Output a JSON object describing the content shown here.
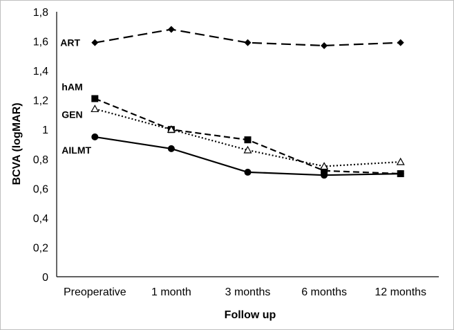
{
  "chart_data": {
    "type": "line",
    "title": "",
    "xlabel": "Follow up",
    "ylabel": "BCVA (logMAR)",
    "ylim": [
      0,
      1.8
    ],
    "yticks": [
      "0",
      "0,2",
      "0,4",
      "0,6",
      "0,8",
      "1",
      "1,2",
      "1,4",
      "1,6",
      "1,8"
    ],
    "categories": [
      "Preoperative",
      "1 month",
      "3 months",
      "6 months",
      "12 months"
    ],
    "grid": false,
    "legend": "inline labels at left",
    "series": [
      {
        "name": "ART",
        "marker": "diamond",
        "dash": "long-dash",
        "values": [
          1.59,
          1.68,
          1.59,
          1.57,
          1.59
        ]
      },
      {
        "name": "hAM",
        "marker": "square",
        "dash": "dash",
        "values": [
          1.21,
          1.0,
          0.93,
          0.72,
          0.7
        ]
      },
      {
        "name": "GEN",
        "marker": "triangle-open",
        "dash": "dotted",
        "values": [
          1.14,
          1.0,
          0.86,
          0.75,
          0.78
        ]
      },
      {
        "name": "AILMT",
        "marker": "circle",
        "dash": "solid",
        "values": [
          0.95,
          0.87,
          0.71,
          0.69,
          0.7
        ]
      }
    ],
    "colors": {
      "line": "#000000",
      "background": "#ffffff",
      "frame": "#bfbfbf"
    }
  }
}
